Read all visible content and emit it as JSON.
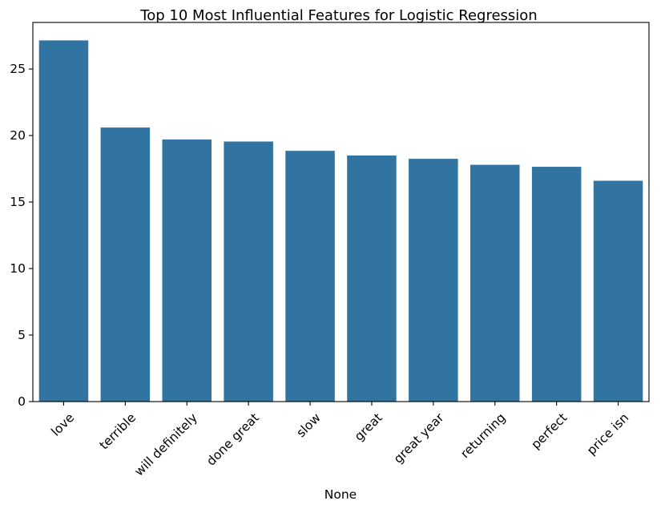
{
  "chart_data": {
    "type": "bar",
    "title": "Top 10 Most Influential Features for Logistic Regression",
    "xlabel": "None",
    "ylabel": "",
    "categories": [
      "love",
      "terrible",
      "will definitely",
      "done great",
      "slow",
      "great",
      "great year",
      "returning",
      "perfect",
      "price isn"
    ],
    "values": [
      27.15,
      20.6,
      19.7,
      19.55,
      18.85,
      18.5,
      18.25,
      17.8,
      17.65,
      16.6
    ],
    "ylim": [
      0,
      28.5
    ],
    "yticks": [
      0,
      5,
      10,
      15,
      20,
      25
    ],
    "grid": false,
    "bar_color": "#3274a1",
    "legend": "none"
  }
}
